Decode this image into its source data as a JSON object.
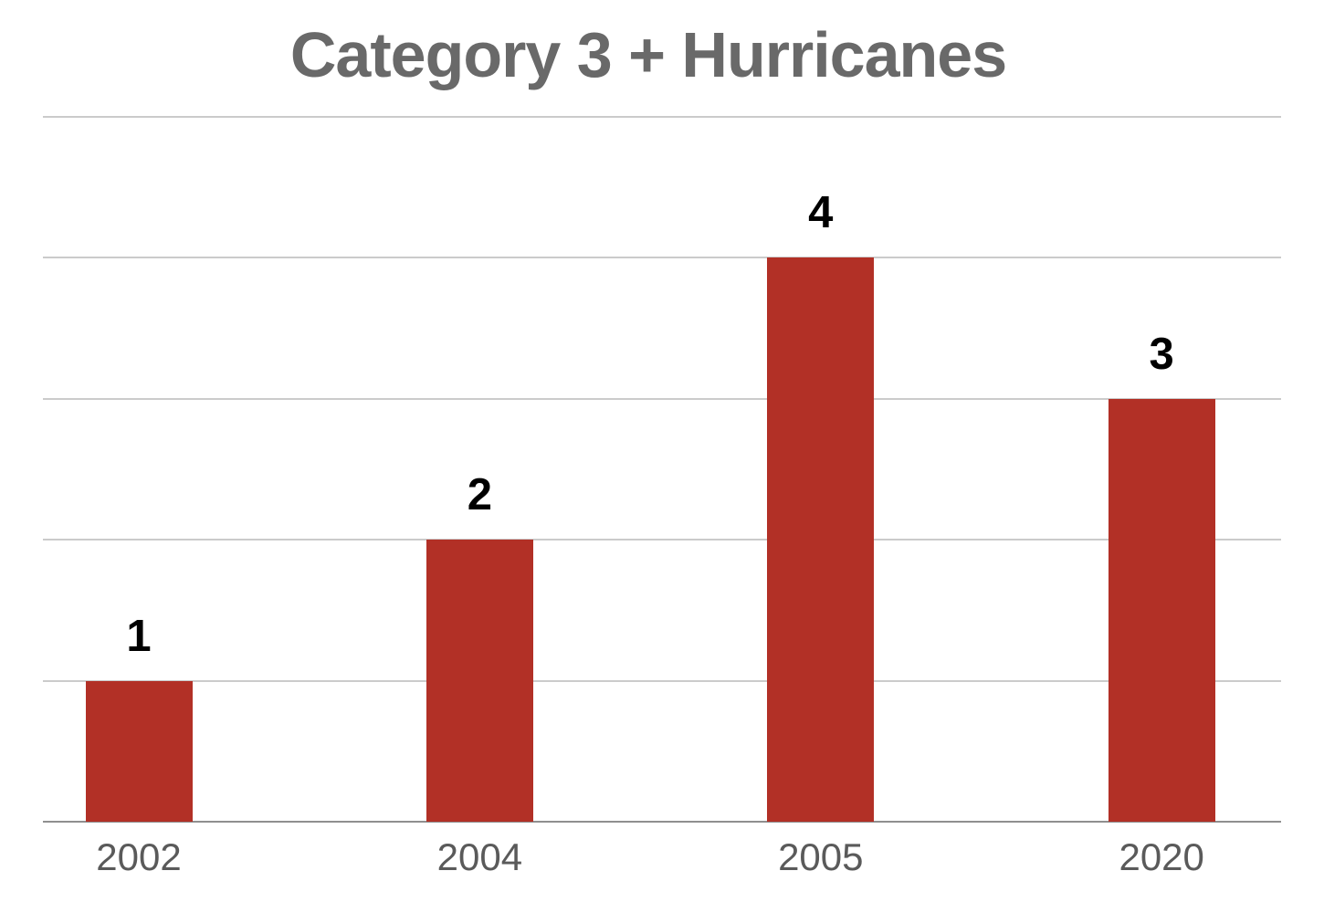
{
  "chart_data": {
    "type": "bar",
    "title": "Category 3 + Hurricanes",
    "categories": [
      "2002",
      "2004",
      "2005",
      "2020"
    ],
    "values": [
      1,
      2,
      4,
      3
    ],
    "xlabel": "",
    "ylabel": "",
    "ylim": [
      0,
      5
    ],
    "ytick_step": 1,
    "grid": true,
    "legend": "none",
    "data_labels_shown": true,
    "colors": {
      "bar": "#B23026",
      "gridline": "#CBCBCB",
      "axis_line": "#8F8F8F",
      "title": "#696969",
      "tick_label": "#5A5A5A",
      "value_label": "#000000",
      "background": "#FFFFFF"
    }
  }
}
